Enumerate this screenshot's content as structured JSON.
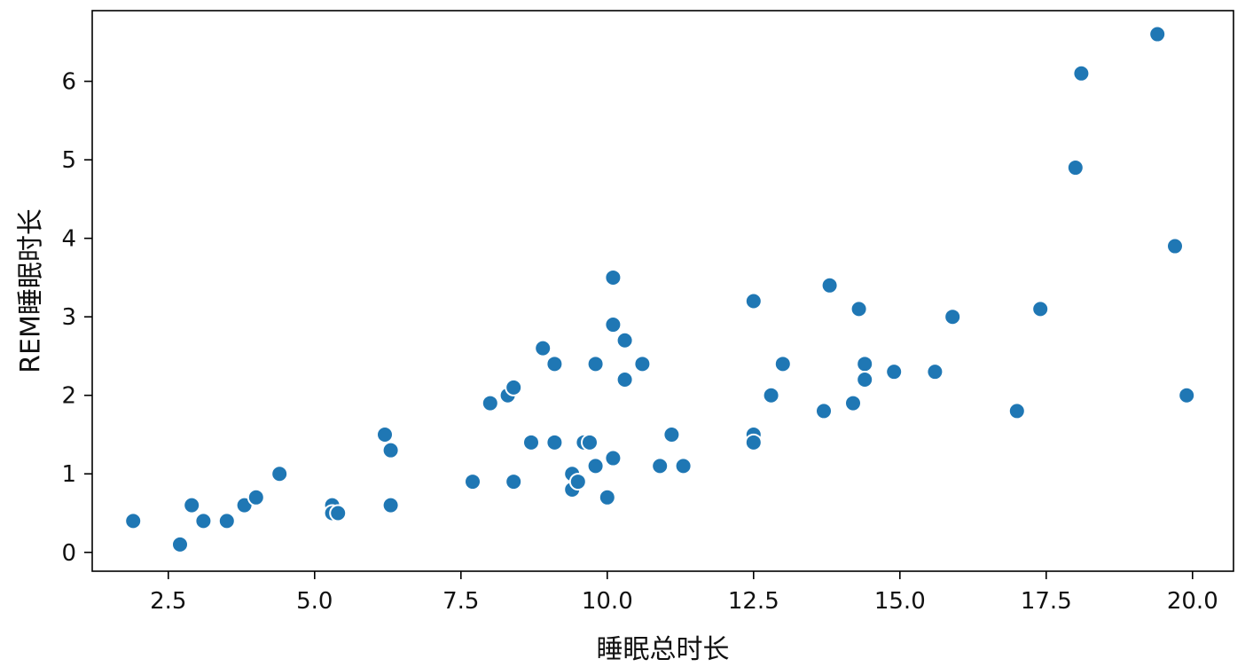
{
  "chart_data": {
    "type": "scatter",
    "title": "",
    "xlabel": "睡眠总时长",
    "ylabel": "REM睡眠时长",
    "xlim": [
      1.2,
      20.7
    ],
    "ylim": [
      -0.24,
      6.9
    ],
    "xticks": [
      2.5,
      5.0,
      7.5,
      10.0,
      12.5,
      15.0,
      17.5,
      20.0
    ],
    "xtick_labels": [
      "2.5",
      "5.0",
      "7.5",
      "10.0",
      "12.5",
      "15.0",
      "17.5",
      "20.0"
    ],
    "yticks": [
      0,
      1,
      2,
      3,
      4,
      5,
      6
    ],
    "ytick_labels": [
      "0",
      "1",
      "2",
      "3",
      "4",
      "5",
      "6"
    ],
    "grid": false,
    "color": "#1f77b4",
    "points": [
      {
        "x": 1.9,
        "y": 0.4
      },
      {
        "x": 2.7,
        "y": 0.1
      },
      {
        "x": 2.9,
        "y": 0.6
      },
      {
        "x": 3.1,
        "y": 0.4
      },
      {
        "x": 3.5,
        "y": 0.4
      },
      {
        "x": 3.8,
        "y": 0.6
      },
      {
        "x": 4.0,
        "y": 0.7
      },
      {
        "x": 4.4,
        "y": 1.0
      },
      {
        "x": 5.3,
        "y": 0.6
      },
      {
        "x": 5.3,
        "y": 0.5
      },
      {
        "x": 5.4,
        "y": 0.5
      },
      {
        "x": 6.2,
        "y": 1.5
      },
      {
        "x": 6.3,
        "y": 1.3
      },
      {
        "x": 6.3,
        "y": 0.6
      },
      {
        "x": 7.7,
        "y": 0.9
      },
      {
        "x": 8.0,
        "y": 1.9
      },
      {
        "x": 8.3,
        "y": 2.0
      },
      {
        "x": 8.4,
        "y": 2.1
      },
      {
        "x": 8.4,
        "y": 0.9
      },
      {
        "x": 8.7,
        "y": 1.4
      },
      {
        "x": 8.9,
        "y": 2.6
      },
      {
        "x": 9.1,
        "y": 2.4
      },
      {
        "x": 9.1,
        "y": 1.4
      },
      {
        "x": 9.4,
        "y": 1.0
      },
      {
        "x": 9.4,
        "y": 0.8
      },
      {
        "x": 9.5,
        "y": 0.9
      },
      {
        "x": 9.6,
        "y": 1.4
      },
      {
        "x": 9.7,
        "y": 1.4
      },
      {
        "x": 9.8,
        "y": 2.4
      },
      {
        "x": 9.8,
        "y": 1.1
      },
      {
        "x": 10.0,
        "y": 0.7
      },
      {
        "x": 10.1,
        "y": 3.5
      },
      {
        "x": 10.1,
        "y": 2.9
      },
      {
        "x": 10.1,
        "y": 1.2
      },
      {
        "x": 10.3,
        "y": 2.7
      },
      {
        "x": 10.3,
        "y": 2.2
      },
      {
        "x": 10.6,
        "y": 2.4
      },
      {
        "x": 10.9,
        "y": 1.1
      },
      {
        "x": 11.1,
        "y": 1.5
      },
      {
        "x": 11.3,
        "y": 1.1
      },
      {
        "x": 12.5,
        "y": 3.2
      },
      {
        "x": 12.5,
        "y": 1.5
      },
      {
        "x": 12.5,
        "y": 1.4
      },
      {
        "x": 12.8,
        "y": 2.0
      },
      {
        "x": 13.0,
        "y": 2.4
      },
      {
        "x": 13.7,
        "y": 1.8
      },
      {
        "x": 13.8,
        "y": 3.4
      },
      {
        "x": 14.2,
        "y": 1.9
      },
      {
        "x": 14.3,
        "y": 3.1
      },
      {
        "x": 14.4,
        "y": 2.4
      },
      {
        "x": 14.4,
        "y": 2.2
      },
      {
        "x": 14.9,
        "y": 2.3
      },
      {
        "x": 15.6,
        "y": 2.3
      },
      {
        "x": 15.9,
        "y": 3.0
      },
      {
        "x": 17.0,
        "y": 1.8
      },
      {
        "x": 17.4,
        "y": 3.1
      },
      {
        "x": 18.0,
        "y": 4.9
      },
      {
        "x": 18.1,
        "y": 6.1
      },
      {
        "x": 19.4,
        "y": 6.6
      },
      {
        "x": 19.7,
        "y": 3.9
      },
      {
        "x": 19.9,
        "y": 2.0
      }
    ]
  }
}
